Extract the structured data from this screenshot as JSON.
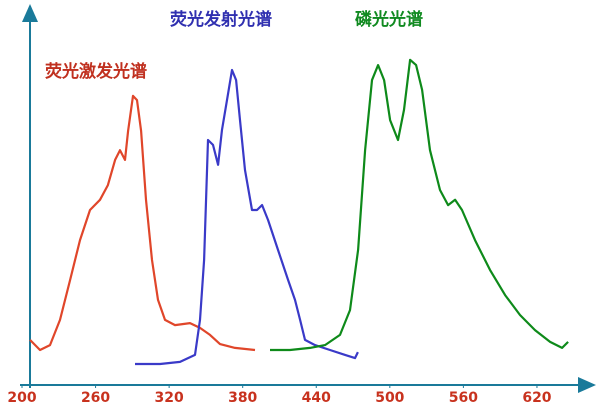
{
  "chart_data": {
    "type": "line",
    "xlim": [
      200,
      660
    ],
    "ylim": [
      0,
      100
    ],
    "xticks": [
      200,
      260,
      320,
      380,
      440,
      500,
      560,
      620
    ],
    "series": [
      {
        "name": "荧光激发光谱",
        "color": "#e0462a",
        "x": [
          206.5,
          214.7,
          222.8,
          231,
          239.2,
          247.3,
          255.5,
          263.6,
          270.1,
          275.9,
          279.9,
          284,
          286.5,
          290.5,
          293.8,
          297.1,
          301.1,
          306,
          310.9,
          316.6,
          324.8,
          337,
          345.2,
          353.3,
          361.5,
          373.7,
          390
        ],
        "values": [
          12.9,
          10,
          11.4,
          18.6,
          30,
          41.4,
          50,
          52.9,
          57.1,
          64.3,
          67.1,
          64.3,
          72.6,
          82.6,
          81.4,
          72.6,
          52.9,
          35.7,
          24.3,
          18.6,
          17.1,
          17.7,
          16.3,
          14.3,
          11.7,
          10.6,
          10
        ]
      },
      {
        "name": "荧光发射光谱",
        "color": "#3a3ac8",
        "x": [
          292.2,
          312.6,
          328.9,
          341.1,
          345.2,
          348.5,
          351.7,
          355.8,
          359.9,
          363.1,
          367.2,
          371.3,
          374.6,
          377.8,
          381.9,
          387.6,
          391.7,
          395.8,
          400.7,
          408.8,
          417,
          422.7,
          426.8,
          430.8,
          439,
          451.2,
          463.5,
          471.6,
          474
        ],
        "values": [
          6,
          6,
          6.6,
          8.6,
          18.6,
          35.7,
          70,
          68.6,
          62.9,
          72.9,
          81.4,
          90,
          87.1,
          75.7,
          61.4,
          50,
          50,
          51.4,
          47.1,
          38.6,
          30,
          24.3,
          18.6,
          12.9,
          11.4,
          10,
          8.6,
          7.7,
          9.4
        ]
      },
      {
        "name": "磷光光谱",
        "color": "#0e8a1a",
        "x": [
          402.3,
          418.6,
          434.9,
          447.1,
          459.4,
          467.5,
          474.1,
          479.8,
          485.5,
          490.4,
          495.3,
          500.2,
          506.7,
          511.6,
          516.5,
          521.4,
          526.3,
          532.8,
          540.9,
          547.5,
          553.2,
          558.9,
          569.5,
          581.7,
          594,
          606.2,
          618.4,
          630.7,
          640.5,
          645.4
        ],
        "values": [
          10,
          10,
          10.6,
          11.4,
          14.3,
          21.4,
          38.6,
          67.1,
          87.1,
          91.4,
          87.1,
          75.7,
          70,
          78.6,
          92.9,
          91.4,
          84.3,
          67.1,
          55.7,
          51.4,
          52.9,
          50,
          41.4,
          32.9,
          25.7,
          20,
          15.7,
          12.3,
          10.6,
          12.3
        ]
      }
    ]
  }
}
